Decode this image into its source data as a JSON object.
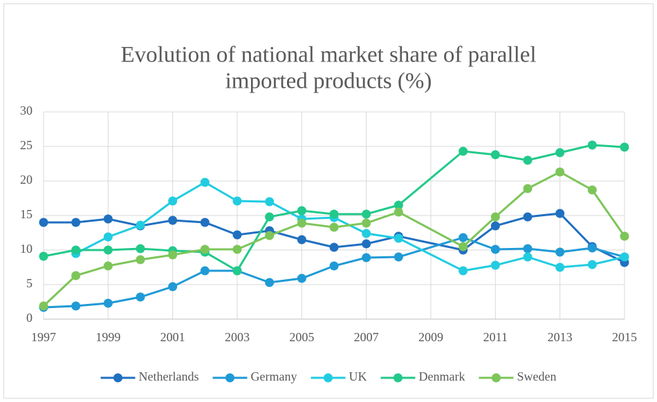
{
  "chart_data": {
    "type": "line",
    "title": [
      "Evolution of national market share of parallel",
      "imported products (%)"
    ],
    "x": [
      1997,
      1998,
      1999,
      2000,
      2001,
      2002,
      2003,
      2004,
      2005,
      2006,
      2007,
      2008,
      2010,
      2011,
      2012,
      2013,
      2014,
      2015
    ],
    "xlim": [
      1997,
      2015
    ],
    "xticks": [
      1997,
      1999,
      2001,
      2003,
      2005,
      2007,
      2009,
      2011,
      2013,
      2015
    ],
    "ylim": [
      0,
      30
    ],
    "yticks": [
      0,
      5,
      10,
      15,
      20,
      25,
      30
    ],
    "grid": true,
    "legend": "bottom",
    "series": [
      {
        "name": "Netherlands",
        "color": "#2070c0",
        "values": [
          14,
          14,
          14.5,
          13.5,
          14.3,
          14,
          12.2,
          12.8,
          11.5,
          10.4,
          10.9,
          12,
          10,
          13.5,
          14.8,
          15.3,
          10.5,
          8.2
        ]
      },
      {
        "name": "Germany",
        "color": "#1f9ad6",
        "values": [
          1.7,
          1.9,
          2.3,
          3.2,
          4.7,
          7,
          7,
          5.3,
          5.9,
          7.7,
          8.9,
          9,
          11.8,
          10.1,
          10.2,
          9.7,
          10.3,
          9
        ]
      },
      {
        "name": "UK",
        "color": "#22cce0",
        "values": [
          null,
          9.5,
          11.9,
          13.6,
          17.1,
          19.8,
          17.1,
          17,
          14.5,
          14.7,
          12.4,
          11.7,
          7,
          7.8,
          9,
          7.5,
          7.9,
          9
        ]
      },
      {
        "name": "Denmark",
        "color": "#22c98a",
        "values": [
          9.1,
          10,
          10,
          10.2,
          9.9,
          9.7,
          7,
          14.8,
          15.7,
          15.2,
          15.2,
          16.5,
          24.3,
          23.8,
          23,
          24.1,
          25.2,
          24.9
        ]
      },
      {
        "name": "Sweden",
        "color": "#7dc55a",
        "values": [
          1.9,
          6.3,
          7.7,
          8.6,
          9.3,
          10.1,
          10.1,
          12.1,
          13.9,
          13.3,
          13.9,
          15.5,
          10.5,
          14.8,
          18.9,
          21.3,
          18.7,
          12
        ]
      }
    ]
  }
}
